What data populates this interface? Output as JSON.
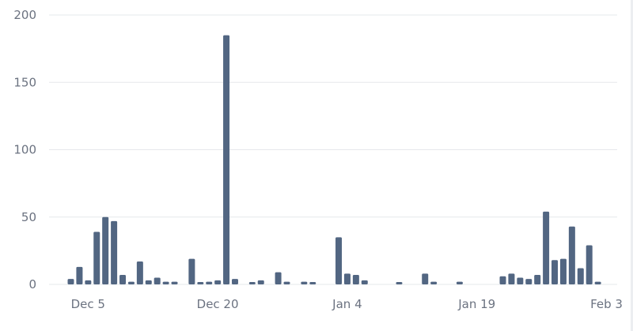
{
  "chart_data": {
    "type": "bar",
    "x_start": "2023-12-03",
    "values": [
      4,
      13,
      3,
      39,
      50,
      47,
      7,
      2,
      17,
      3,
      5,
      2,
      2,
      0,
      19,
      1,
      2,
      3,
      185,
      4,
      0,
      1,
      3,
      0,
      9,
      2,
      0,
      2,
      1,
      0,
      0,
      35,
      8,
      7,
      3,
      0,
      0,
      0,
      1,
      0,
      0,
      8,
      2,
      0,
      0,
      2,
      0,
      0,
      0,
      0,
      6,
      8,
      5,
      4,
      7,
      54,
      18,
      19,
      43,
      12,
      29,
      2
    ],
    "x_ticks": [
      "Dec 5",
      "Dec 20",
      "Jan 4",
      "Jan 19",
      "Feb 3"
    ],
    "y_ticks": [
      0,
      50,
      100,
      150,
      200
    ],
    "ylim": [
      0,
      200
    ],
    "bar_color": "#526682",
    "grid_color": "#e6e8eb",
    "grid": true
  }
}
